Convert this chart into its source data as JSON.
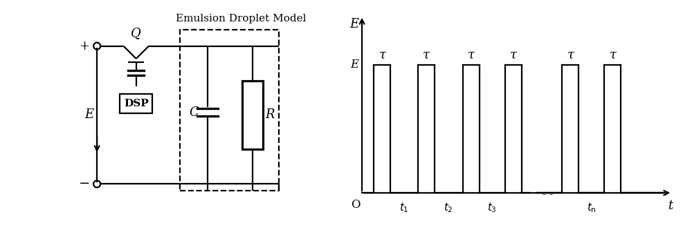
{
  "bg_color": "#ffffff",
  "line_color": "#000000",
  "circuit_label": "Emulsion Droplet Model",
  "plus_label": "+",
  "minus_label": "−",
  "E_label": "E",
  "Q_label": "Q",
  "C_label": "C",
  "R_label": "R",
  "DSP_label": "DSP",
  "pulse_E_label": "E",
  "pulse_O_label": "O",
  "pulse_t_label": "t",
  "pulse_tau_label": "τ"
}
